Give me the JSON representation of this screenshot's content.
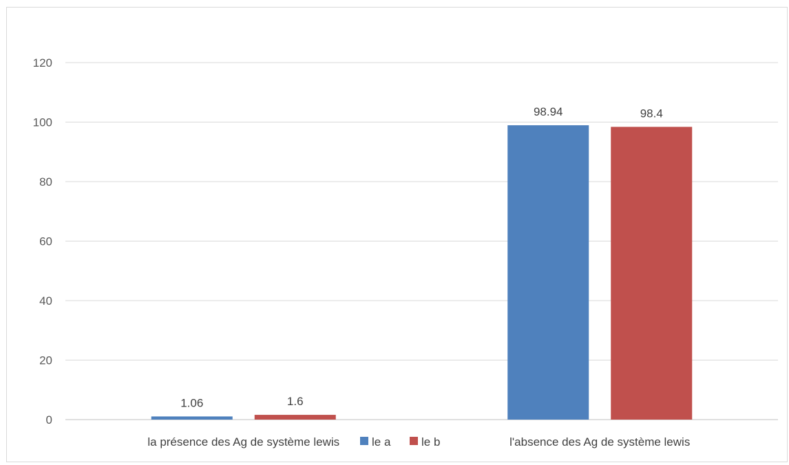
{
  "chart_data": {
    "type": "bar",
    "title": "",
    "xlabel": "",
    "ylabel": "",
    "ylim": [
      0,
      120
    ],
    "yticks": [
      0,
      20,
      40,
      60,
      80,
      100,
      120
    ],
    "grid": true,
    "legend_position": "bottom",
    "categories": [
      "la présence des Ag de système lewis",
      "l'absence des Ag de système lewis"
    ],
    "series": [
      {
        "name": "le a",
        "values": [
          1.06,
          98.94
        ],
        "labels": [
          "1.06",
          "98.94"
        ],
        "color": "#4f81bd"
      },
      {
        "name": "le b",
        "values": [
          1.6,
          98.4
        ],
        "labels": [
          "1.6",
          "98.4"
        ],
        "color": "#c0504d"
      }
    ]
  }
}
